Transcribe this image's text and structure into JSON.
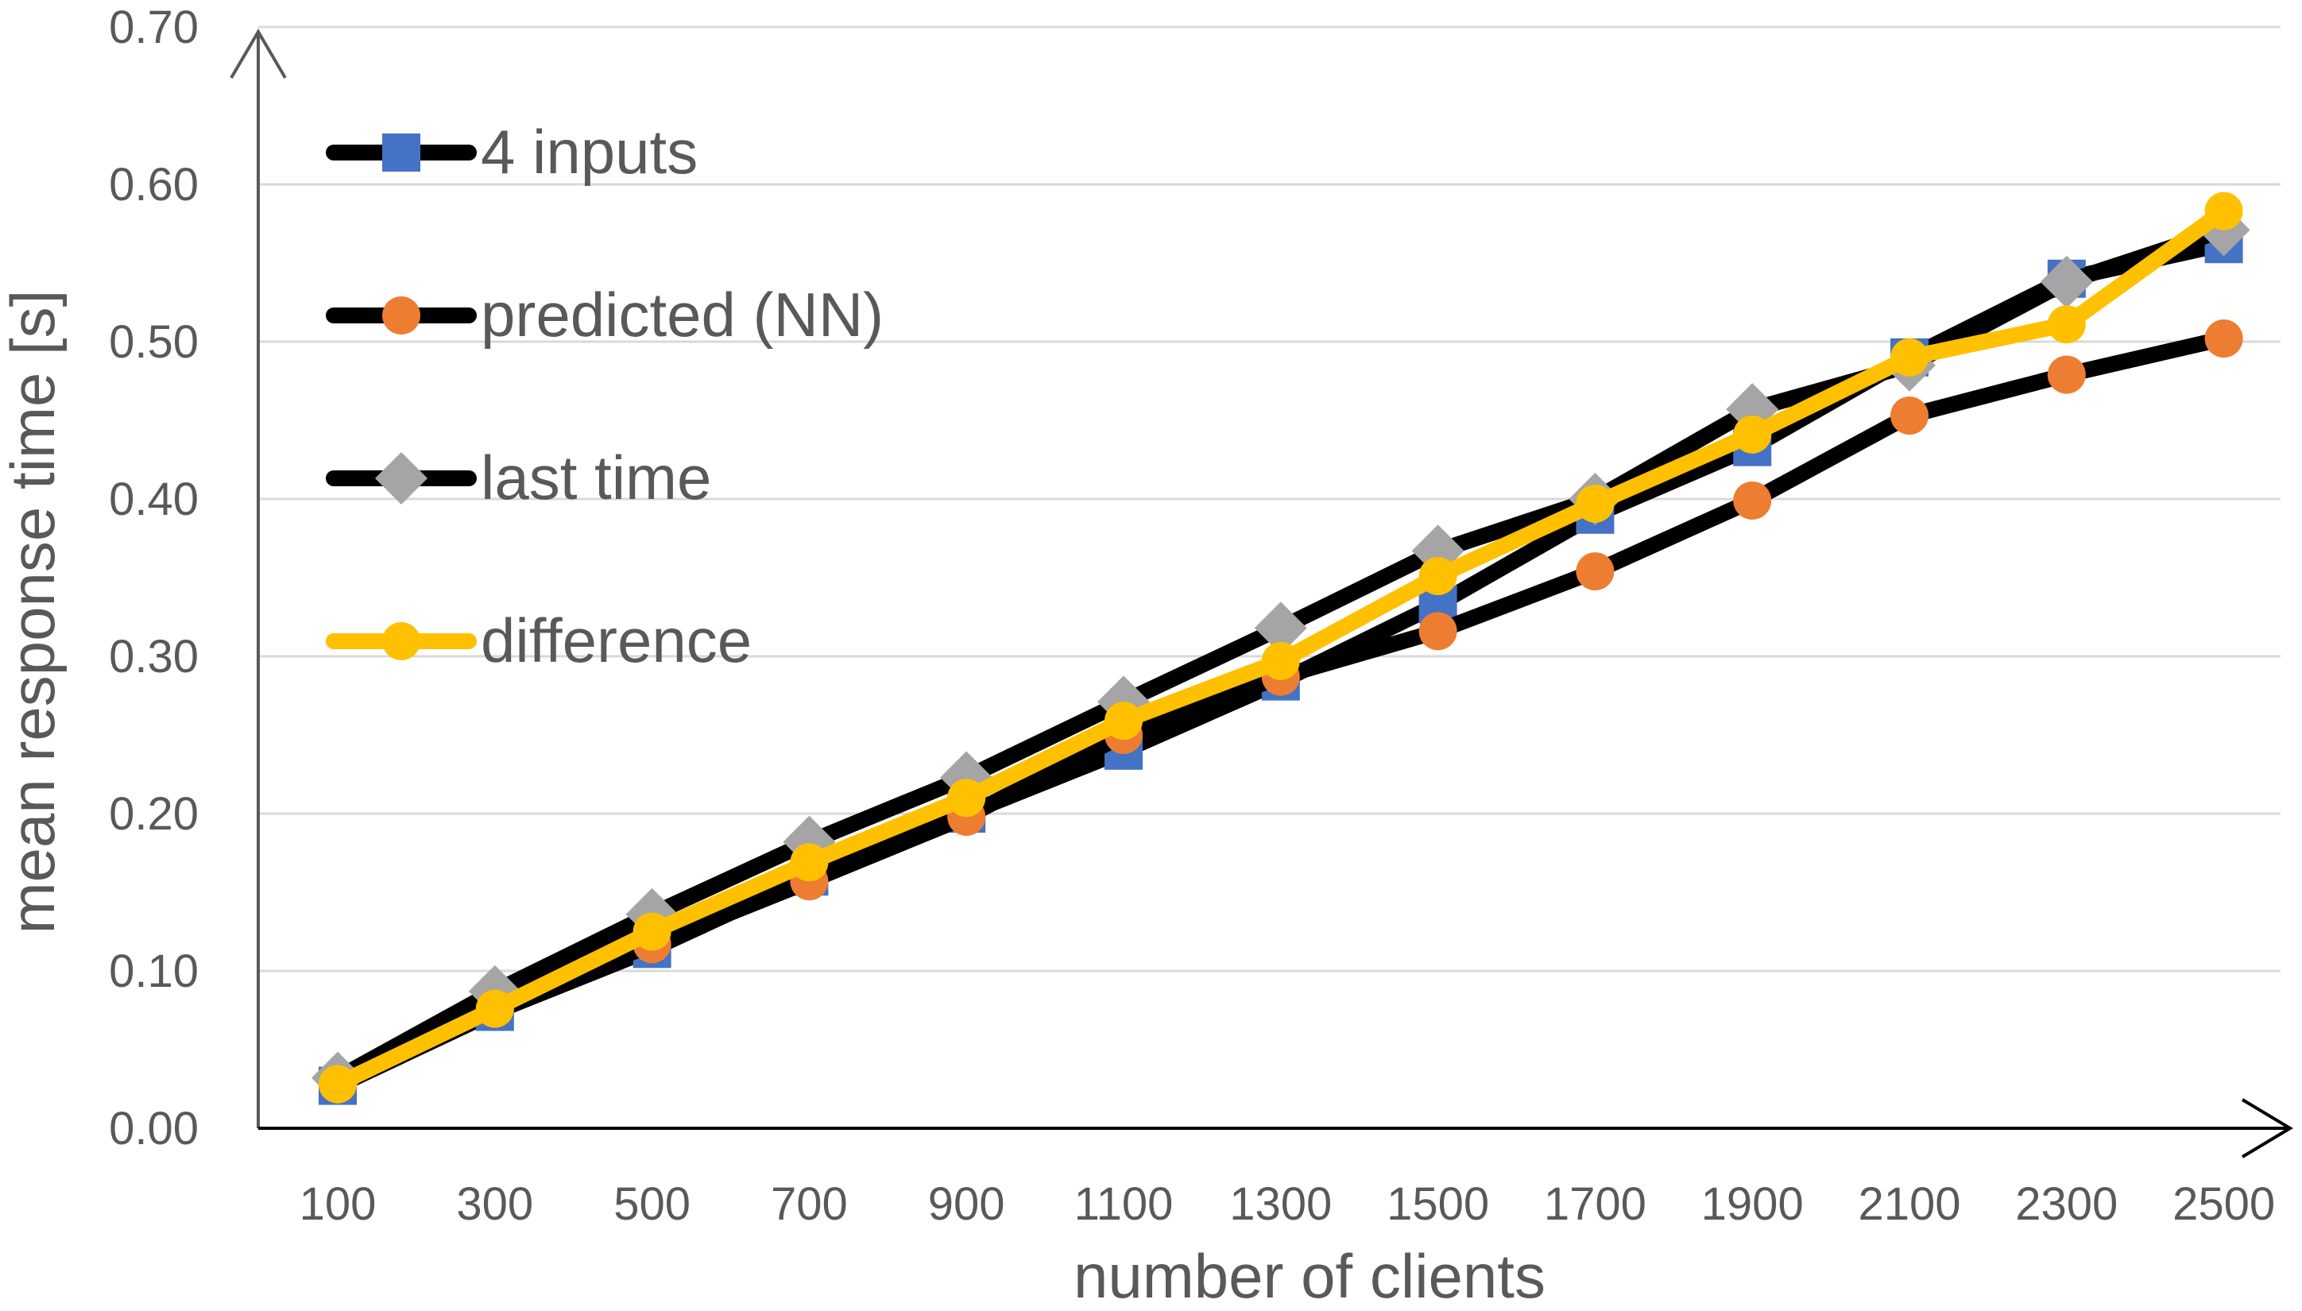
{
  "chart_data": {
    "type": "line",
    "title": "",
    "xlabel": "number of clients",
    "ylabel": "mean response time [s]",
    "categories": [
      "100",
      "300",
      "500",
      "700",
      "900",
      "1100",
      "1300",
      "1500",
      "1700",
      "1900",
      "2100",
      "2300",
      "2500"
    ],
    "y_tick_labels": [
      "0.00",
      "0.10",
      "0.20",
      "0.30",
      "0.40",
      "0.50",
      "0.60",
      "0.70"
    ],
    "ylim": [
      0,
      0.7
    ],
    "grid": true,
    "legend_position": "top-left",
    "series": [
      {
        "name": "4 inputs",
        "marker": "square",
        "line_color": "#000000",
        "marker_color": "#4472C4",
        "values": [
          0.027,
          0.074,
          0.114,
          0.16,
          0.2,
          0.24,
          0.284,
          0.333,
          0.39,
          0.433,
          0.49,
          0.54,
          0.562
        ]
      },
      {
        "name": "predicted (NN)",
        "marker": "circle",
        "line_color": "#000000",
        "marker_color": "#ED7D31",
        "values": [
          0.028,
          0.076,
          0.117,
          0.157,
          0.198,
          0.25,
          0.287,
          0.316,
          0.354,
          0.399,
          0.453,
          0.479,
          0.502
        ]
      },
      {
        "name": "last time",
        "marker": "diamond",
        "line_color": "#000000",
        "marker_color": "#A5A5A5",
        "values": [
          0.032,
          0.087,
          0.136,
          0.182,
          0.223,
          0.271,
          0.318,
          0.367,
          0.4,
          0.457,
          0.485,
          0.538,
          0.571
        ]
      },
      {
        "name": "difference",
        "marker": "circle",
        "line_color": "#FFC000",
        "marker_color": "#FFC000",
        "values": [
          0.028,
          0.076,
          0.125,
          0.169,
          0.21,
          0.259,
          0.297,
          0.351,
          0.397,
          0.441,
          0.49,
          0.511,
          0.583
        ]
      }
    ]
  },
  "colors": {
    "axis": "#595959",
    "grid": "#D9D9D9",
    "text": "#595959"
  }
}
